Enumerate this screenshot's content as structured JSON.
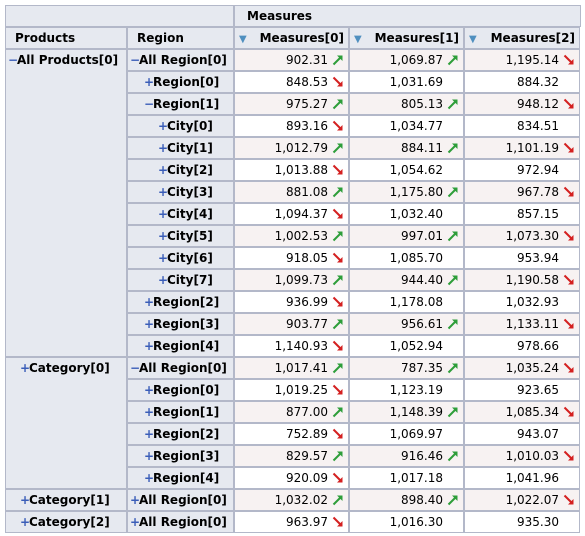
{
  "header": {
    "products": "Products",
    "region": "Region",
    "measures": "Measures",
    "cols": [
      "Measures[0]",
      "Measures[1]",
      "Measures[2]"
    ]
  },
  "rows": [
    {
      "p": "All Products[0]",
      "ps": "-",
      "r": "All Region[0]",
      "rs": "-",
      "ind": 0,
      "v": [
        [
          "902.31",
          "up"
        ],
        [
          "1,069.87",
          "up"
        ],
        [
          "1,195.14",
          "down"
        ]
      ]
    },
    {
      "p": "",
      "r": "Region[0]",
      "rs": "+",
      "ind": 1,
      "v": [
        [
          "848.53",
          "down"
        ],
        [
          "1,031.69",
          ""
        ],
        [
          "884.32",
          ""
        ]
      ]
    },
    {
      "p": "",
      "r": "Region[1]",
      "rs": "-",
      "ind": 1,
      "v": [
        [
          "975.27",
          "up"
        ],
        [
          "805.13",
          "up"
        ],
        [
          "948.12",
          "down"
        ]
      ]
    },
    {
      "p": "",
      "r": "City[0]",
      "rs": "+",
      "ind": 2,
      "v": [
        [
          "893.16",
          "down"
        ],
        [
          "1,034.77",
          ""
        ],
        [
          "834.51",
          ""
        ]
      ]
    },
    {
      "p": "",
      "r": "City[1]",
      "rs": "+",
      "ind": 2,
      "v": [
        [
          "1,012.79",
          "up"
        ],
        [
          "884.11",
          "up"
        ],
        [
          "1,101.19",
          "down"
        ]
      ]
    },
    {
      "p": "",
      "r": "City[2]",
      "rs": "+",
      "ind": 2,
      "v": [
        [
          "1,013.88",
          "down"
        ],
        [
          "1,054.62",
          ""
        ],
        [
          "972.94",
          ""
        ]
      ]
    },
    {
      "p": "",
      "r": "City[3]",
      "rs": "+",
      "ind": 2,
      "v": [
        [
          "881.08",
          "up"
        ],
        [
          "1,175.80",
          "up"
        ],
        [
          "967.78",
          "down"
        ]
      ]
    },
    {
      "p": "",
      "r": "City[4]",
      "rs": "+",
      "ind": 2,
      "v": [
        [
          "1,094.37",
          "down"
        ],
        [
          "1,032.40",
          ""
        ],
        [
          "857.15",
          ""
        ]
      ]
    },
    {
      "p": "",
      "r": "City[5]",
      "rs": "+",
      "ind": 2,
      "v": [
        [
          "1,002.53",
          "up"
        ],
        [
          "997.01",
          "up"
        ],
        [
          "1,073.30",
          "down"
        ]
      ]
    },
    {
      "p": "",
      "r": "City[6]",
      "rs": "+",
      "ind": 2,
      "v": [
        [
          "918.05",
          "down"
        ],
        [
          "1,085.70",
          ""
        ],
        [
          "953.94",
          ""
        ]
      ]
    },
    {
      "p": "",
      "r": "City[7]",
      "rs": "+",
      "ind": 2,
      "v": [
        [
          "1,099.73",
          "up"
        ],
        [
          "944.40",
          "up"
        ],
        [
          "1,190.58",
          "down"
        ]
      ]
    },
    {
      "p": "",
      "r": "Region[2]",
      "rs": "+",
      "ind": 1,
      "v": [
        [
          "936.99",
          "down"
        ],
        [
          "1,178.08",
          ""
        ],
        [
          "1,032.93",
          ""
        ]
      ]
    },
    {
      "p": "",
      "r": "Region[3]",
      "rs": "+",
      "ind": 1,
      "v": [
        [
          "903.77",
          "up"
        ],
        [
          "956.61",
          "up"
        ],
        [
          "1,133.11",
          "down"
        ]
      ]
    },
    {
      "p": "",
      "r": "Region[4]",
      "rs": "+",
      "ind": 1,
      "v": [
        [
          "1,140.93",
          "down"
        ],
        [
          "1,052.94",
          ""
        ],
        [
          "978.66",
          ""
        ]
      ]
    },
    {
      "p": "Category[0]",
      "ps": "+",
      "r": "All Region[0]",
      "rs": "-",
      "ind": 0,
      "v": [
        [
          "1,017.41",
          "up"
        ],
        [
          "787.35",
          "up"
        ],
        [
          "1,035.24",
          "down"
        ]
      ]
    },
    {
      "p": "",
      "r": "Region[0]",
      "rs": "+",
      "ind": 1,
      "v": [
        [
          "1,019.25",
          "down"
        ],
        [
          "1,123.19",
          ""
        ],
        [
          "923.65",
          ""
        ]
      ]
    },
    {
      "p": "",
      "r": "Region[1]",
      "rs": "+",
      "ind": 1,
      "v": [
        [
          "877.00",
          "up"
        ],
        [
          "1,148.39",
          "up"
        ],
        [
          "1,085.34",
          "down"
        ]
      ]
    },
    {
      "p": "",
      "r": "Region[2]",
      "rs": "+",
      "ind": 1,
      "v": [
        [
          "752.89",
          "down"
        ],
        [
          "1,069.97",
          ""
        ],
        [
          "943.07",
          ""
        ]
      ]
    },
    {
      "p": "",
      "r": "Region[3]",
      "rs": "+",
      "ind": 1,
      "v": [
        [
          "829.57",
          "up"
        ],
        [
          "916.46",
          "up"
        ],
        [
          "1,010.03",
          "down"
        ]
      ]
    },
    {
      "p": "",
      "r": "Region[4]",
      "rs": "+",
      "ind": 1,
      "v": [
        [
          "920.09",
          "down"
        ],
        [
          "1,017.18",
          ""
        ],
        [
          "1,041.96",
          ""
        ]
      ]
    },
    {
      "p": "Category[1]",
      "ps": "+",
      "r": "All Region[0]",
      "rs": "+",
      "ind": 0,
      "v": [
        [
          "1,032.02",
          "up"
        ],
        [
          "898.40",
          "up"
        ],
        [
          "1,022.07",
          "down"
        ]
      ]
    },
    {
      "p": "Category[2]",
      "ps": "+",
      "r": "All Region[0]",
      "rs": "+",
      "ind": 0,
      "v": [
        [
          "963.97",
          "down"
        ],
        [
          "1,016.30",
          ""
        ],
        [
          "935.30",
          ""
        ]
      ]
    }
  ],
  "colors": {
    "up": "#2e9e3a",
    "down": "#d42020",
    "header_bg": "#e6e9f0",
    "sign": "#3a5db8"
  }
}
